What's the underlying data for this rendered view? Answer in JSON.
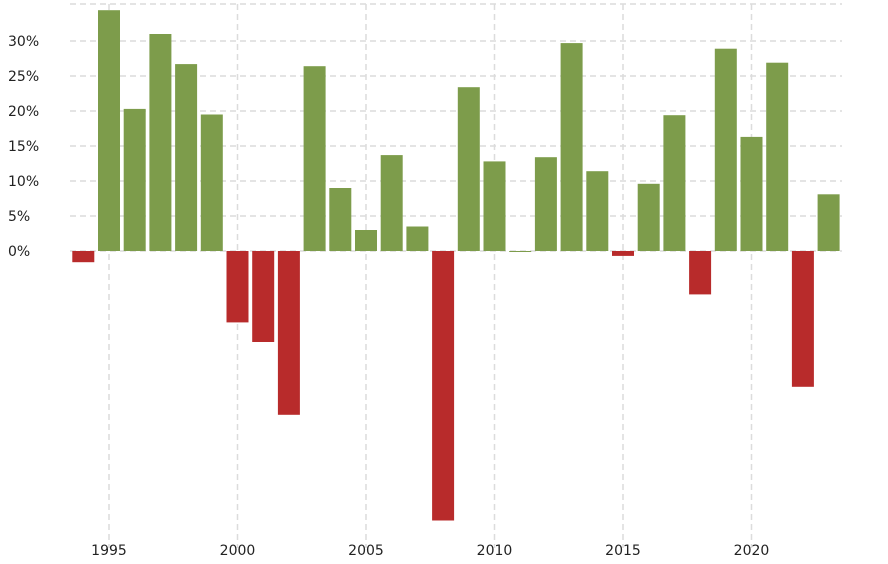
{
  "chart_data": {
    "type": "bar",
    "title": "",
    "xlabel": "",
    "ylabel": "",
    "ylim": [
      -0.387,
      0.345
    ],
    "grid": true,
    "legend": "none",
    "colors": {
      "positive": "#7d9c4b",
      "negative": "#b82b2b",
      "grid": "#dcdcdc",
      "text": "#222222"
    },
    "yticks": [
      {
        "value": 0.3,
        "label": "30%"
      },
      {
        "value": 0.25,
        "label": "25%"
      },
      {
        "value": 0.2,
        "label": "20%"
      },
      {
        "value": 0.15,
        "label": "15%"
      },
      {
        "value": 0.1,
        "label": "10%"
      },
      {
        "value": 0.05,
        "label": "5%"
      },
      {
        "value": 0.0,
        "label": "0%"
      }
    ],
    "xticks": [
      {
        "value": 1995,
        "label": "1995"
      },
      {
        "value": 2000,
        "label": "2000"
      },
      {
        "value": 2005,
        "label": "2005"
      },
      {
        "value": 2010,
        "label": "2010"
      },
      {
        "value": 2015,
        "label": "2015"
      },
      {
        "value": 2020,
        "label": "2020"
      }
    ],
    "x": [
      1994,
      1995,
      1996,
      1997,
      1998,
      1999,
      2000,
      2001,
      2002,
      2003,
      2004,
      2005,
      2006,
      2007,
      2008,
      2009,
      2010,
      2011,
      2012,
      2013,
      2014,
      2015,
      2016,
      2017,
      2018,
      2019,
      2020,
      2021,
      2022,
      2023
    ],
    "values": [
      -0.016,
      0.344,
      0.203,
      0.31,
      0.267,
      0.195,
      -0.102,
      -0.13,
      -0.234,
      0.264,
      0.09,
      0.03,
      0.137,
      0.035,
      -0.385,
      0.234,
      0.128,
      0.0,
      0.134,
      0.297,
      0.114,
      -0.007,
      0.096,
      0.194,
      -0.062,
      0.289,
      0.163,
      0.269,
      -0.194,
      0.081
    ]
  }
}
